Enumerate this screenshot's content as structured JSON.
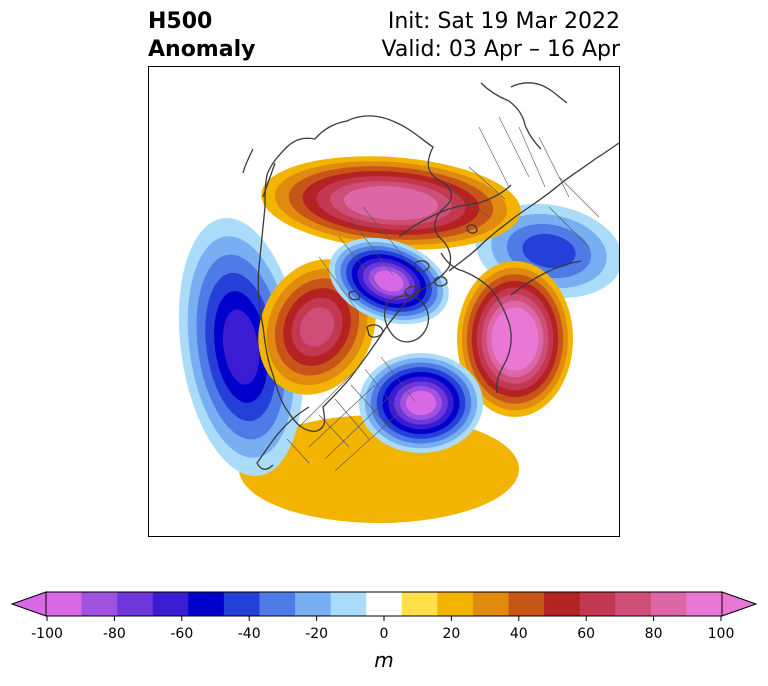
{
  "header": {
    "variable_line1": "H500",
    "variable_line2": "Anomaly",
    "init_text": "Init: Sat 19 Mar 2022",
    "valid_text": "Valid: 03 Apr – 16 Apr"
  },
  "colorbar": {
    "unit": "m",
    "ticks": [
      "-100",
      "-80",
      "-60",
      "-40",
      "-20",
      "0",
      "20",
      "40",
      "60",
      "80",
      "100"
    ],
    "colors": [
      "#d868e6",
      "#9f52e0",
      "#6e38dc",
      "#3a1dd2",
      "#0000cc",
      "#2440d8",
      "#4f7be6",
      "#78aef2",
      "#aadcfa",
      "#ffffff",
      "#ffe04a",
      "#f2b400",
      "#e08a10",
      "#c85518",
      "#b42222",
      "#c33851",
      "#cf4e78",
      "#dc66a6",
      "#e878d4"
    ],
    "under_color": "#d868e6",
    "over_color": "#e878d4"
  },
  "map": {
    "anomalies": [
      {
        "name": "north-pacific-trough",
        "sign": "negative",
        "peak_m": -65
      },
      {
        "name": "arctic-siberia-low",
        "sign": "negative",
        "peak_m": -95
      },
      {
        "name": "eastern-canada-low",
        "sign": "negative",
        "peak_m": -95
      },
      {
        "name": "northern-asia-ridge",
        "sign": "positive",
        "peak_m": 80
      },
      {
        "name": "greenland-europe-ridge",
        "sign": "positive",
        "peak_m": 100
      },
      {
        "name": "alaska-ridge",
        "sign": "positive",
        "peak_m": 65
      },
      {
        "name": "europe-russia-trough",
        "sign": "negative",
        "peak_m": -45
      },
      {
        "name": "us-ridge",
        "sign": "positive",
        "peak_m": 15
      }
    ]
  }
}
